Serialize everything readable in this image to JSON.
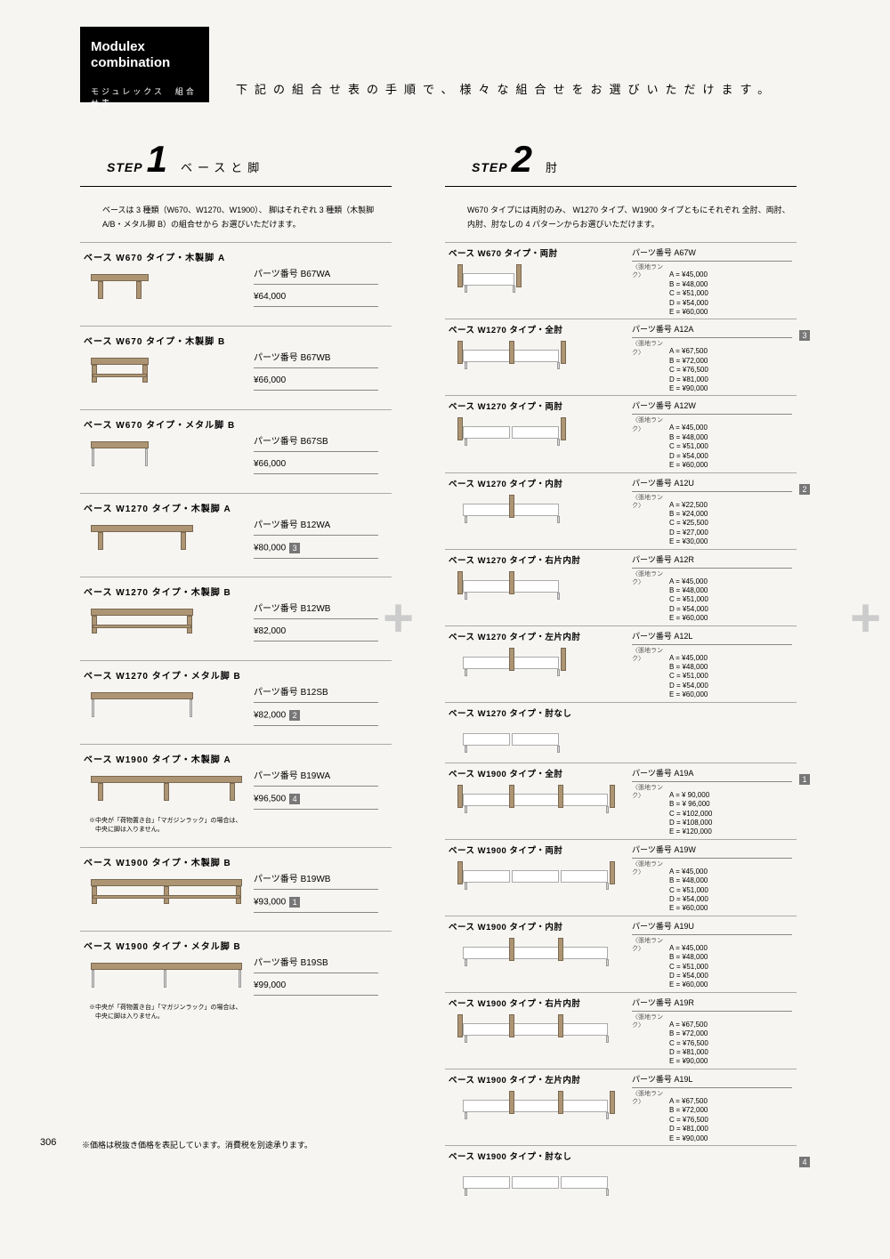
{
  "header": {
    "en1": "Modulex",
    "en2": "combination",
    "jp": "モジュレックス　組合せ表"
  },
  "intro": "下記の組合せ表の手順で、様々な組合せをお選びいただけます。",
  "pageNumber": "306",
  "pageNote": "※価格は税抜き価格を表記しています。消費税を別途承ります。",
  "step1": {
    "stepWord": "STEP",
    "num": "1",
    "title": "ベースと脚",
    "desc": "ベースは 3 種類（W670、W1270、W1900）、\n脚はそれぞれ 3 種類（木製脚 A/B・メタル脚 B）の組合せから\nお選びいただけます。",
    "items": [
      {
        "label": "ベース W670 タイプ・木製脚 A",
        "part": "パーツ番号 B67WA",
        "price": "¥64,000",
        "diagram": "w67a"
      },
      {
        "label": "ベース W670 タイプ・木製脚 B",
        "part": "パーツ番号 B67WB",
        "price": "¥66,000",
        "diagram": "w67b"
      },
      {
        "label": "ベース W670 タイプ・メタル脚 B",
        "part": "パーツ番号 B67SB",
        "price": "¥66,000",
        "diagram": "w67m"
      },
      {
        "label": "ベース W1270 タイプ・木製脚 A",
        "part": "パーツ番号 B12WA",
        "price": "¥80,000",
        "badge": "3",
        "diagram": "w127a"
      },
      {
        "label": "ベース W1270 タイプ・木製脚 B",
        "part": "パーツ番号 B12WB",
        "price": "¥82,000",
        "diagram": "w127b"
      },
      {
        "label": "ベース W1270 タイプ・メタル脚 B",
        "part": "パーツ番号 B12SB",
        "price": "¥82,000",
        "badge": "2",
        "diagram": "w127m"
      },
      {
        "label": "ベース W1900 タイプ・木製脚 A",
        "part": "パーツ番号 B19WA",
        "price": "¥96,500",
        "badge": "4",
        "note": "※中央が「荷物置き台」「マガジンラック」の場合は、\n　中央に脚は入りません。",
        "diagram": "w19a"
      },
      {
        "label": "ベース W1900 タイプ・木製脚 B",
        "part": "パーツ番号 B19WB",
        "price": "¥93,000",
        "badge": "1",
        "diagram": "w19b"
      },
      {
        "label": "ベース W1900 タイプ・メタル脚 B",
        "part": "パーツ番号 B19SB",
        "price": "¥99,000",
        "note": "※中央が「荷物置き台」「マガジンラック」の場合は、\n　中央に脚は入りません。",
        "diagram": "w19m"
      }
    ]
  },
  "step2": {
    "stepWord": "STEP",
    "num": "2",
    "title": "肘",
    "desc": "W670 タイプには両肘のみ、\nW1270 タイプ、W1900 タイプともにそれぞれ\n全肘、両肘、内肘、肘なしの 4 パターンからお選びいただけます。",
    "rankLabel": "〈張地ランク〉",
    "items": [
      {
        "label": "ベース W670 タイプ・両肘",
        "part": "パーツ番号 A67W",
        "prices": [
          "A = ¥45,000",
          "B = ¥48,000",
          "C = ¥51,000",
          "D = ¥54,000",
          "E = ¥60,000"
        ],
        "diagram": "s67w"
      },
      {
        "label": "ベース W1270 タイプ・全肘",
        "part": "パーツ番号 A12A",
        "prices": [
          "A = ¥67,500",
          "B = ¥72,000",
          "C = ¥76,500",
          "D = ¥81,000",
          "E = ¥90,000"
        ],
        "badge": "3",
        "diagram": "s12a"
      },
      {
        "label": "ベース W1270 タイプ・両肘",
        "part": "パーツ番号 A12W",
        "prices": [
          "A = ¥45,000",
          "B = ¥48,000",
          "C = ¥51,000",
          "D = ¥54,000",
          "E = ¥60,000"
        ],
        "diagram": "s12w"
      },
      {
        "label": "ベース W1270 タイプ・内肘",
        "part": "パーツ番号 A12U",
        "prices": [
          "A = ¥22,500",
          "B = ¥24,000",
          "C = ¥25,500",
          "D = ¥27,000",
          "E = ¥30,000"
        ],
        "badge": "2",
        "diagram": "s12u"
      },
      {
        "label": "ベース W1270 タイプ・右片内肘",
        "part": "パーツ番号 A12R",
        "prices": [
          "A = ¥45,000",
          "B = ¥48,000",
          "C = ¥51,000",
          "D = ¥54,000",
          "E = ¥60,000"
        ],
        "diagram": "s12r"
      },
      {
        "label": "ベース W1270 タイプ・左片内肘",
        "part": "パーツ番号 A12L",
        "prices": [
          "A = ¥45,000",
          "B = ¥48,000",
          "C = ¥51,000",
          "D = ¥54,000",
          "E = ¥60,000"
        ],
        "diagram": "s12l"
      },
      {
        "label": "ベース W1270 タイプ・肘なし",
        "part": "",
        "prices": [],
        "diagram": "s12n"
      },
      {
        "label": "ベース W1900 タイプ・全肘",
        "part": "パーツ番号 A19A",
        "prices": [
          "A = ¥ 90,000",
          "B = ¥ 96,000",
          "C = ¥102,000",
          "D = ¥108,000",
          "E = ¥120,000"
        ],
        "badge": "1",
        "diagram": "s19a"
      },
      {
        "label": "ベース W1900 タイプ・両肘",
        "part": "パーツ番号 A19W",
        "prices": [
          "A = ¥45,000",
          "B = ¥48,000",
          "C = ¥51,000",
          "D = ¥54,000",
          "E = ¥60,000"
        ],
        "diagram": "s19w"
      },
      {
        "label": "ベース W1900 タイプ・内肘",
        "part": "パーツ番号 A19U",
        "prices": [
          "A = ¥45,000",
          "B = ¥48,000",
          "C = ¥51,000",
          "D = ¥54,000",
          "E = ¥60,000"
        ],
        "diagram": "s19u"
      },
      {
        "label": "ベース W1900 タイプ・右片内肘",
        "part": "パーツ番号 A19R",
        "prices": [
          "A = ¥67,500",
          "B = ¥72,000",
          "C = ¥76,500",
          "D = ¥81,000",
          "E = ¥90,000"
        ],
        "diagram": "s19r"
      },
      {
        "label": "ベース W1900 タイプ・左片内肘",
        "part": "パーツ番号 A19L",
        "prices": [
          "A = ¥67,500",
          "B = ¥72,000",
          "C = ¥76,500",
          "D = ¥81,000",
          "E = ¥90,000"
        ],
        "diagram": "s19l"
      },
      {
        "label": "ベース W1900 タイプ・肘なし",
        "part": "",
        "prices": [],
        "badge": "4",
        "diagram": "s19n"
      }
    ]
  },
  "colors": {
    "wood": "#ad9574",
    "woodBorder": "#7a6850",
    "metal": "#d6d6d6",
    "sofa": "#ffffff",
    "sofaBorder": "#aaaaaa"
  }
}
